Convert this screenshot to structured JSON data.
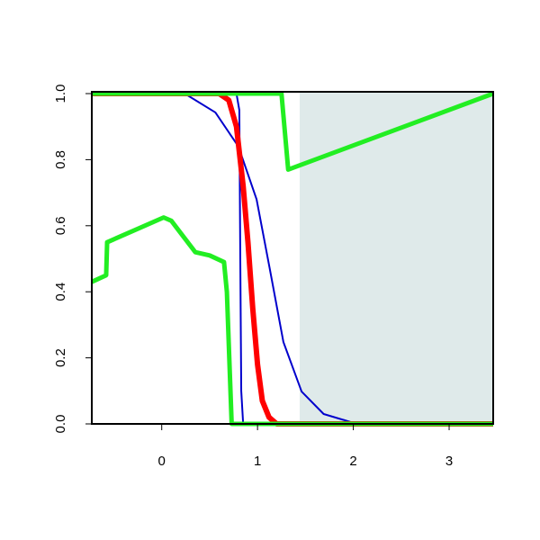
{
  "chart_data": {
    "type": "line",
    "xlim": [
      -0.73,
      3.46
    ],
    "ylim": [
      0,
      1
    ],
    "xticks": [
      0,
      1,
      2,
      3
    ],
    "yticks": [
      {
        "value": 0,
        "label": "0.0"
      },
      {
        "value": 0.2,
        "label": "0.2"
      },
      {
        "value": 0.4,
        "label": "0.4"
      },
      {
        "value": 0.6,
        "label": "0.6"
      },
      {
        "value": 0.8,
        "label": "0.8"
      },
      {
        "value": 1,
        "label": "1.0"
      }
    ],
    "shade": {
      "xlim": [
        1.44,
        3.46
      ],
      "color": "#dfeaea"
    },
    "series": [
      {
        "color": "#0000cc",
        "width": 2,
        "x": [
          -0.73,
          0.24,
          0.56,
          0.8,
          0.99,
          1.13,
          1.27,
          1.46,
          1.69,
          1.98,
          3.46
        ],
        "values": [
          1,
          1,
          0.943,
          0.84,
          0.68,
          0.466,
          0.248,
          0.098,
          0.03,
          0.005,
          0
        ]
      },
      {
        "color": "#0000cc",
        "width": 2,
        "x": [
          -0.73,
          0.78,
          0.81,
          0.82,
          0.83,
          0.85,
          3.46
        ],
        "values": [
          1,
          1,
          0.95,
          0.5,
          0.1,
          0,
          0
        ]
      },
      {
        "color": "#ff0000",
        "width": 6,
        "x": [
          -0.73,
          0.6,
          0.7,
          0.78,
          0.85,
          0.9,
          0.95,
          1.0,
          1.05,
          1.12,
          1.2,
          3.46
        ],
        "values": [
          1,
          1,
          0.98,
          0.9,
          0.72,
          0.55,
          0.35,
          0.18,
          0.07,
          0.02,
          0,
          0
        ]
      },
      {
        "color": "#22ee22",
        "width": 5,
        "x": [
          -0.73,
          1.25,
          1.32,
          3.46
        ],
        "values": [
          1,
          1,
          0.77,
          1
        ]
      },
      {
        "color": "#22ee22",
        "width": 5,
        "x": [
          -0.73,
          -0.58,
          -0.57,
          0.02,
          0.1,
          0.35,
          0.5,
          0.65,
          0.68,
          0.73,
          3.46
        ],
        "values": [
          0.43,
          0.45,
          0.55,
          0.625,
          0.615,
          0.52,
          0.51,
          0.49,
          0.4,
          0,
          0
        ]
      }
    ]
  }
}
